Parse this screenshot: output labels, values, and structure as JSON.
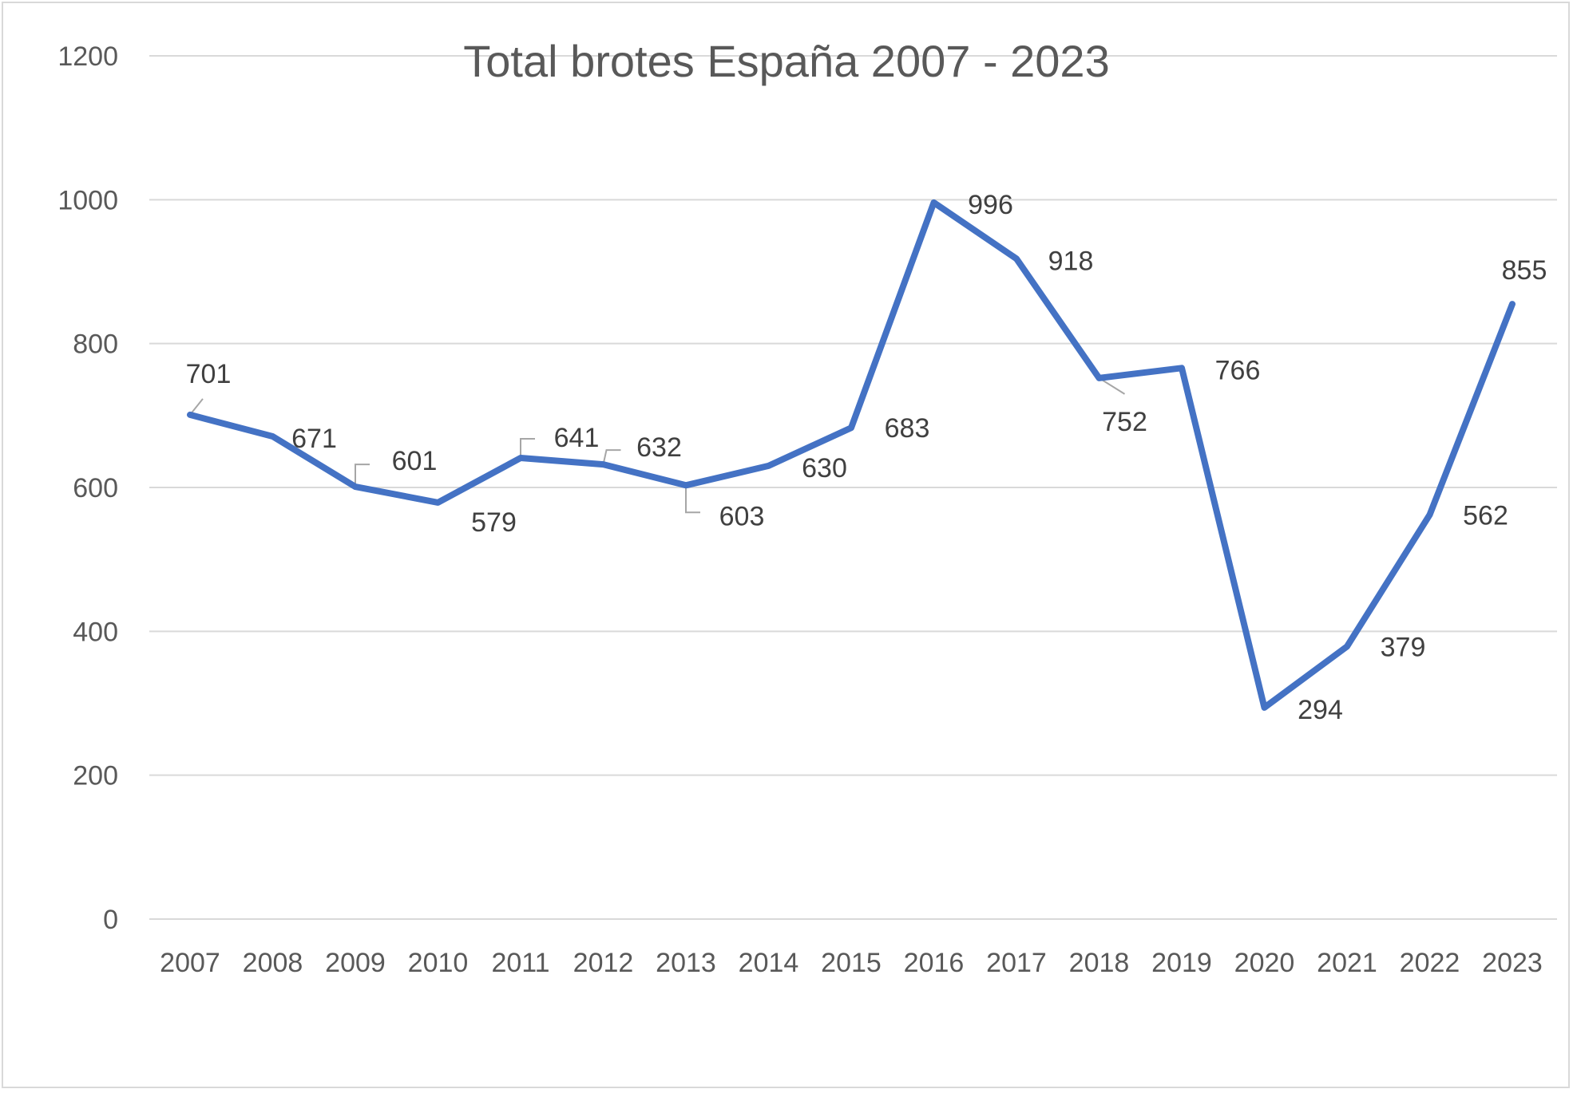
{
  "chart_data": {
    "type": "line",
    "title": "Total brotes España 2007 - 2023",
    "xlabel": "",
    "ylabel": "",
    "categories": [
      "2007",
      "2008",
      "2009",
      "2010",
      "2011",
      "2012",
      "2013",
      "2014",
      "2015",
      "2016",
      "2017",
      "2018",
      "2019",
      "2020",
      "2021",
      "2022",
      "2023"
    ],
    "series": [
      {
        "values": [
          701,
          671,
          601,
          579,
          641,
          632,
          603,
          630,
          683,
          996,
          918,
          752,
          766,
          294,
          379,
          562,
          855
        ]
      }
    ],
    "ylim": [
      0,
      1200
    ],
    "yticks": [
      "0",
      "200",
      "400",
      "600",
      "800",
      "1000",
      "1200"
    ],
    "grid": true,
    "legend": "none",
    "line_color": "#4472C4",
    "grid_color": "#d9d9d9",
    "leader_color": "#a6a6a6"
  }
}
